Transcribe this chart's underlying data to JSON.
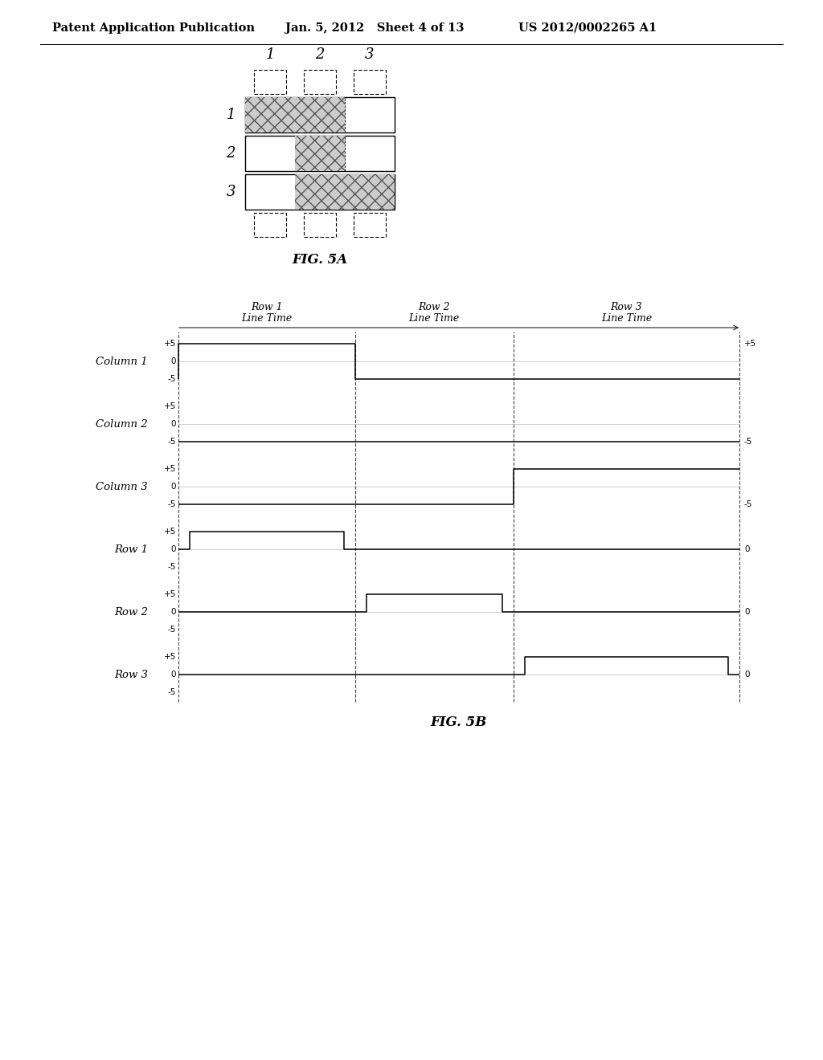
{
  "header_left": "Patent Application Publication",
  "header_mid": "Jan. 5, 2012   Sheet 4 of 13",
  "header_right": "US 2012/0002265 A1",
  "fig5a_label": "FIG. 5A",
  "fig5b_label": "FIG. 5B",
  "col_labels": [
    "1",
    "2",
    "3"
  ],
  "row_labels": [
    "1",
    "2",
    "3"
  ],
  "timing_labels_left": [
    "Column 1",
    "Column 2",
    "Column 3",
    "Row 1",
    "Row 2",
    "Row 3"
  ],
  "timing_section_labels": [
    "Row 1\nLine Time",
    "Row 2\nLine Time",
    "Row 3\nLine Time"
  ],
  "right_labels": [
    "+5",
    "-5",
    "-5",
    "0",
    "0",
    "0"
  ],
  "bg_color": "#ffffff"
}
